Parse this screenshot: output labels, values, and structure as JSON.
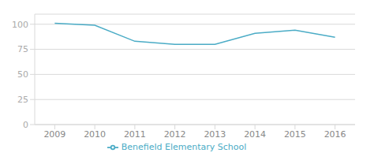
{
  "chart_data": {
    "type": "line",
    "x": [
      2009,
      2010,
      2011,
      2012,
      2013,
      2014,
      2015,
      2016
    ],
    "series": [
      {
        "name": "Benefield Elementary School",
        "color": "#4bacc6",
        "values": [
          101,
          99,
          83,
          80,
          80,
          91,
          94,
          87
        ]
      }
    ],
    "xlim": [
      2008.5,
      2016.5
    ],
    "xticks": [
      2009,
      2010,
      2011,
      2012,
      2013,
      2014,
      2015,
      2016
    ],
    "ylim": [
      0,
      110
    ],
    "yticks": [
      0,
      25,
      50,
      75,
      100
    ],
    "grid": true,
    "legend": "bottom"
  }
}
